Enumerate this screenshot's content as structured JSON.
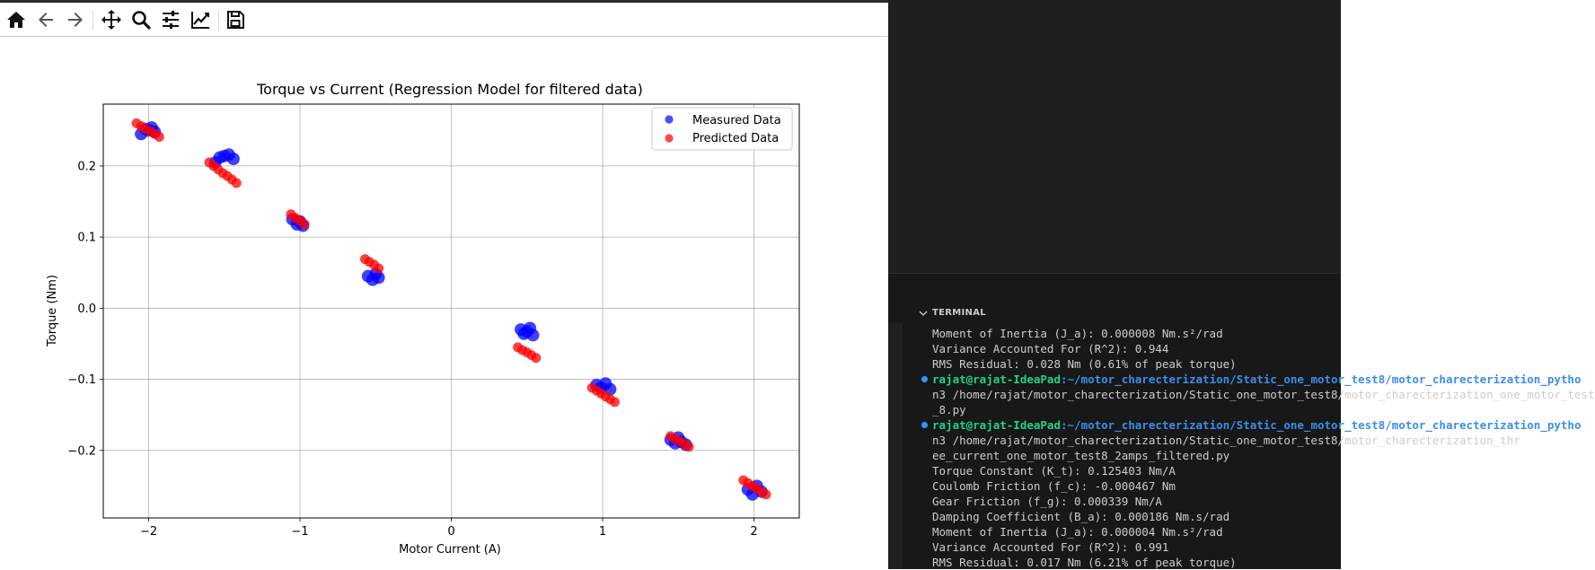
{
  "toolbar": {
    "buttons": [
      {
        "name": "home-icon"
      },
      {
        "name": "back-icon"
      },
      {
        "name": "forward-icon"
      },
      {
        "name": "pan-icon"
      },
      {
        "name": "zoom-icon"
      },
      {
        "name": "configure-subplots-icon"
      },
      {
        "name": "edit-axis-icon"
      },
      {
        "name": "save-icon"
      }
    ]
  },
  "chart_data": {
    "type": "scatter",
    "title": "Torque vs Current (Regression Model for filtered data)",
    "xlabel": "Motor Current (A)",
    "ylabel": "Torque (Nm)",
    "xlim": [
      -2.3,
      2.3
    ],
    "ylim": [
      -0.295,
      0.287
    ],
    "xticks": [
      -2,
      -1,
      0,
      1,
      2
    ],
    "xtick_labels": [
      "−2",
      "−1",
      "0",
      "1",
      "2"
    ],
    "yticks": [
      -0.2,
      -0.1,
      0.0,
      0.1,
      0.2
    ],
    "ytick_labels": [
      "−0.2",
      "−0.1",
      "0.0",
      "0.1",
      "0.2"
    ],
    "grid": true,
    "legend_position": "top-right",
    "series": [
      {
        "name": "Measured Data",
        "color": "#0000ff",
        "x": [
          -2.05,
          -2.02,
          -2.0,
          -1.98,
          -1.96,
          -1.56,
          -1.53,
          -1.5,
          -1.47,
          -1.44,
          -1.05,
          -1.02,
          -1.0,
          -0.98,
          -0.55,
          -0.52,
          -0.5,
          -0.48,
          0.46,
          0.48,
          0.5,
          0.52,
          0.54,
          0.96,
          0.99,
          1.02,
          1.05,
          1.45,
          1.48,
          1.5,
          1.52,
          1.55,
          1.96,
          1.99,
          2.02,
          2.05
        ],
        "y": [
          0.245,
          0.252,
          0.25,
          0.254,
          0.248,
          0.205,
          0.212,
          0.214,
          0.216,
          0.21,
          0.125,
          0.118,
          0.122,
          0.116,
          0.045,
          0.04,
          0.048,
          0.043,
          -0.03,
          -0.036,
          -0.033,
          -0.028,
          -0.038,
          -0.108,
          -0.112,
          -0.106,
          -0.114,
          -0.185,
          -0.19,
          -0.182,
          -0.188,
          -0.192,
          -0.255,
          -0.262,
          -0.25,
          -0.258
        ]
      },
      {
        "name": "Predicted Data",
        "color": "#ff0000",
        "x": [
          -2.08,
          -2.05,
          -2.02,
          -1.99,
          -1.96,
          -1.93,
          -1.6,
          -1.57,
          -1.54,
          -1.51,
          -1.48,
          -1.45,
          -1.42,
          -1.06,
          -1.03,
          -1.0,
          -0.97,
          -0.57,
          -0.54,
          -0.51,
          -0.48,
          0.44,
          0.47,
          0.5,
          0.53,
          0.56,
          0.93,
          0.96,
          0.99,
          1.02,
          1.05,
          1.08,
          1.45,
          1.48,
          1.51,
          1.54,
          1.57,
          1.93,
          1.96,
          1.99,
          2.02,
          2.05,
          2.08
        ],
        "y": [
          0.26,
          0.256,
          0.252,
          0.249,
          0.245,
          0.241,
          0.205,
          0.2,
          0.195,
          0.19,
          0.186,
          0.181,
          0.176,
          0.132,
          0.127,
          0.123,
          0.118,
          0.069,
          0.065,
          0.061,
          0.056,
          -0.055,
          -0.059,
          -0.062,
          -0.066,
          -0.07,
          -0.112,
          -0.116,
          -0.12,
          -0.124,
          -0.128,
          -0.132,
          -0.18,
          -0.184,
          -0.187,
          -0.191,
          -0.195,
          -0.242,
          -0.246,
          -0.25,
          -0.254,
          -0.258,
          -0.262
        ]
      }
    ]
  },
  "terminal": {
    "header": "TERMINAL",
    "lines": [
      {
        "text": "Moment of Inertia (J_a): 0.000008 Nm.s²/rad"
      },
      {
        "text": "Variance Accounted For (R^2): 0.944"
      },
      {
        "text": "RMS Residual: 0.028 Nm (0.61% of peak torque)"
      },
      {
        "prompt_user": "rajat@rajat-IdeaPad",
        "prompt_path": ":~/motor_charecterization/Static_one_motor_test8/motor_charecterization_pytho",
        "dot": true
      },
      {
        "text": "n3 /home/rajat/motor_charecterization/Static_one_motor_test8/motor_charecterization_one_motor_test"
      },
      {
        "text": "_8.py"
      },
      {
        "prompt_user": "rajat@rajat-IdeaPad",
        "prompt_path": ":~/motor_charecterization/Static_one_motor_test8/motor_charecterization_pytho",
        "dot": true
      },
      {
        "text": "n3 /home/rajat/motor_charecterization/Static_one_motor_test8/motor_charecterization_thr"
      },
      {
        "text": "ee_current_one_motor_test8_2amps_filtered.py"
      },
      {
        "text": "Torque Constant (K_t): 0.125403 Nm/A"
      },
      {
        "text": "Coulomb Friction (f_c): -0.000467 Nm"
      },
      {
        "text": "Gear Friction (f_g): 0.000339 Nm/A"
      },
      {
        "text": "Damping Coefficient (B_a): 0.000186 Nm.s/rad"
      },
      {
        "text": "Moment of Inertia (J_a): 0.000004 Nm.s²/rad"
      },
      {
        "text": "Variance Accounted For (R^2): 0.991"
      },
      {
        "text": "RMS Residual: 0.017 Nm (6.21% of peak torque)"
      }
    ]
  }
}
